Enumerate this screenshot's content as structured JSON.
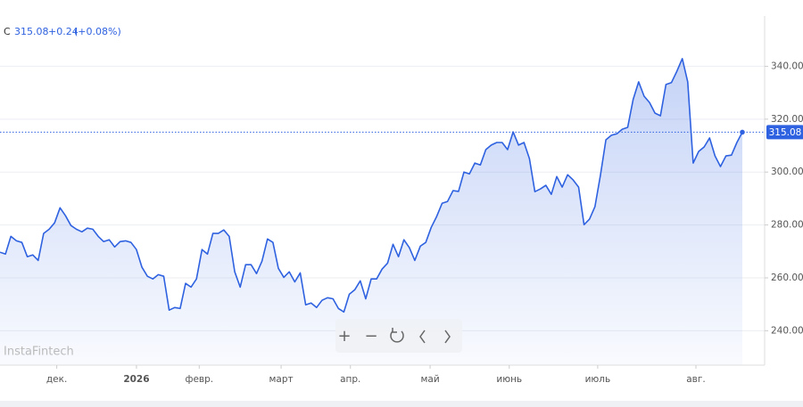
{
  "chart_data": {
    "type": "area",
    "ticker": "C",
    "change": "+0.24",
    "change_percent": "(+0.08%)",
    "watermark": "InstaFintech",
    "series": [
      {
        "name": "C",
        "color": "#2f62e0",
        "values": [
          269.7,
          269,
          275.7,
          274,
          273.4,
          268,
          268.7,
          266.6,
          276.8,
          278.4,
          280.8,
          286.5,
          283.5,
          279.8,
          278.4,
          277.4,
          278.8,
          278.4,
          275.7,
          273.7,
          274.4,
          271.7,
          273.7,
          274,
          273.4,
          270.7,
          264,
          260.6,
          259.6,
          261.2,
          260.6,
          247.8,
          248.8,
          248.4,
          257.9,
          256.5,
          259.6,
          270.7,
          269,
          276.8,
          276.8,
          278.1,
          275.7,
          262.3,
          256.5,
          265,
          265,
          261.6,
          266.3,
          274.7,
          273.4,
          263.6,
          260.2,
          262.3,
          258.5,
          261.9,
          249.8,
          250.5,
          248.8,
          251.5,
          252.5,
          252.1,
          248.4,
          247.1,
          253.8,
          255.5,
          258.9,
          252.1,
          259.6,
          259.6,
          263.3,
          265.6,
          272.7,
          268,
          274.4,
          271.4,
          266.6,
          272,
          273.4,
          279.1,
          283.2,
          288.2,
          288.9,
          293,
          292.7,
          300,
          299.3,
          303.4,
          302.7,
          308.5,
          310.2,
          311.2,
          311.2,
          308.5,
          315.2,
          310.2,
          311.2,
          305.1,
          292.6,
          293.6,
          295,
          291.6,
          298.3,
          294.3,
          299,
          297,
          294.3,
          280.1,
          282.2,
          286.9,
          298.7,
          312.2,
          313.9,
          314.5,
          316.2,
          316.9,
          327.4,
          334.1,
          328.7,
          326.3,
          322.3,
          321.3,
          333.1,
          333.8,
          338.1,
          342.9,
          334.1,
          303.4,
          307.8,
          309.5,
          312.9,
          306.1,
          302.1,
          306.1,
          306.4,
          311.2,
          315.08
        ]
      }
    ],
    "xlim": [
      0,
      136
    ],
    "xticks": [
      {
        "value": 10.4,
        "label": "дек."
      },
      {
        "value": 25,
        "label": "2026"
      },
      {
        "value": 36.5,
        "label": "февр."
      },
      {
        "value": 51.5,
        "label": "март"
      },
      {
        "value": 64.2,
        "label": "апр."
      },
      {
        "value": 78.8,
        "label": "май"
      },
      {
        "value": 93.3,
        "label": "июнь"
      },
      {
        "value": 109.5,
        "label": "июль"
      },
      {
        "value": 127.5,
        "label": "авг."
      }
    ],
    "ylim": [
      227,
      359
    ],
    "yticks": [
      {
        "value": 240,
        "label": "240.00"
      },
      {
        "value": 260,
        "label": "260.00"
      },
      {
        "value": 280,
        "label": "280.00"
      },
      {
        "value": 300,
        "label": "300.00"
      },
      {
        "value": 320,
        "label": "320.00"
      },
      {
        "value": 340,
        "label": "340.00"
      }
    ],
    "grid": true
  }
}
